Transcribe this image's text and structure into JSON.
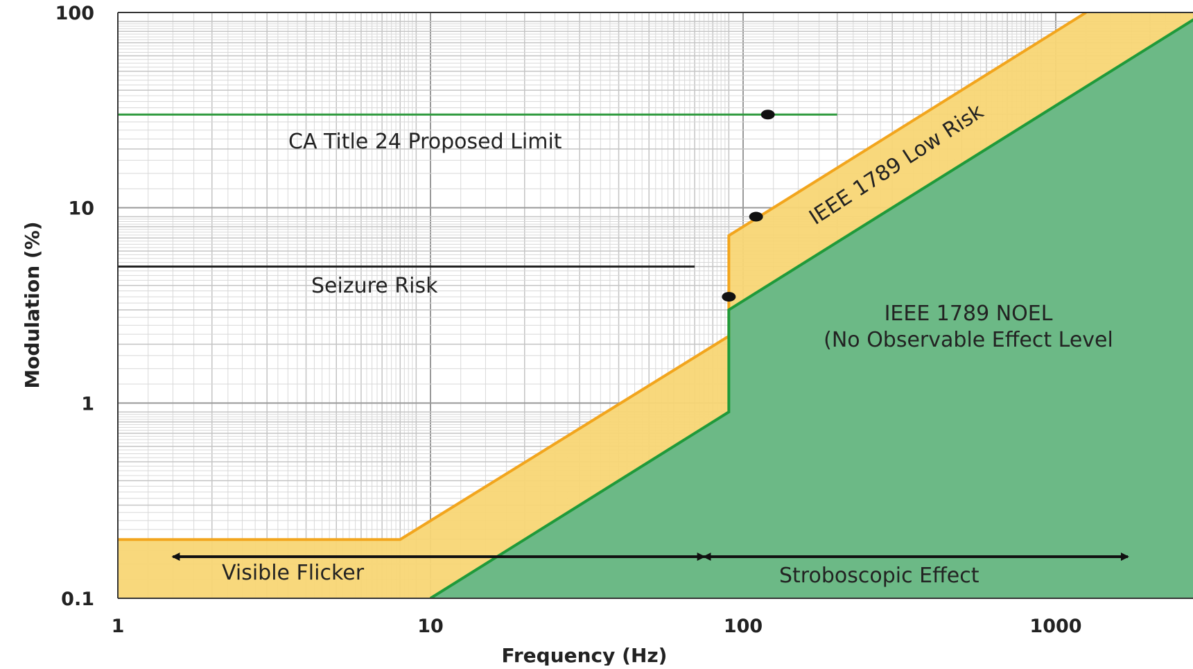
{
  "chart_data": {
    "type": "area",
    "xlabel": "Frequency (Hz)",
    "ylabel": "Modulation (%)",
    "x_scale": "log",
    "y_scale": "log",
    "xlim": [
      1,
      3000
    ],
    "ylim": [
      0.1,
      100
    ],
    "x_ticks": [
      "1",
      "10",
      "100",
      "1000"
    ],
    "y_ticks": [
      "100",
      "10",
      "1",
      "0.1"
    ],
    "grid": true,
    "regions": [
      {
        "name": "IEEE 1789 Low Risk",
        "color": "#f8d675",
        "boundary": [
          {
            "x": 1,
            "y": 0.2
          },
          {
            "x": 8,
            "y": 0.2
          },
          {
            "x": 90,
            "y": 2.2
          },
          {
            "x": 90,
            "y": 7.2
          },
          {
            "x": 1250,
            "y": 100
          }
        ]
      },
      {
        "name": "IEEE 1789 NOEL",
        "color": "#6cb986",
        "boundary": [
          {
            "x": 10,
            "y": 0.1
          },
          {
            "x": 90,
            "y": 0.9
          },
          {
            "x": 90,
            "y": 3
          },
          {
            "x": 3000,
            "y": 100
          }
        ]
      }
    ],
    "lines": [
      {
        "name": "CA Title 24 Proposed Limit",
        "color": "#2e9a3e",
        "x": [
          1,
          200
        ],
        "y": [
          30,
          30
        ]
      },
      {
        "name": "Seizure Risk",
        "color": "#222222",
        "x": [
          1,
          70
        ],
        "y": [
          5,
          5
        ]
      }
    ],
    "markers": [
      {
        "x": 120,
        "y": 30
      },
      {
        "x": 110,
        "y": 9
      },
      {
        "x": 90,
        "y": 3.5
      }
    ],
    "ranges": [
      {
        "label": "Visible Flicker",
        "x": [
          1.5,
          75
        ]
      },
      {
        "label": "Stroboscopic Effect",
        "x": [
          75,
          1700
        ]
      }
    ],
    "annotations": {
      "ca_title24": "CA Title 24 Proposed Limit",
      "seizure": "Seizure Risk",
      "low_risk": "IEEE 1789 Low Risk",
      "noel_line1": "IEEE 1789 NOEL",
      "noel_line2": "(No Observable Effect Level",
      "visible_flicker": "Visible Flicker",
      "stroboscopic": "Stroboscopic Effect"
    }
  }
}
